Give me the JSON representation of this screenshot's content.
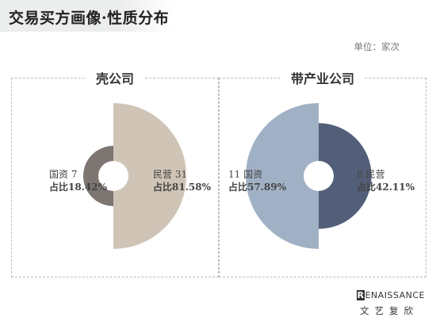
{
  "header": {
    "title": "交易买方画像·性质分布"
  },
  "unit": "单位：家次",
  "colors": {
    "shell_small": "#7d7572",
    "shell_large": "#cfc4b6",
    "industry_large": "#a1b1c5",
    "industry_small": "#535f78"
  },
  "chart_data": [
    {
      "type": "pie",
      "title": "壳公司",
      "slices": [
        {
          "name": "国资",
          "value": 7,
          "share_label": "占比18.42%",
          "color": "#7d7572"
        },
        {
          "name": "民营",
          "value": 31,
          "share_label": "占比81.58%",
          "color": "#cfc4b6"
        }
      ]
    },
    {
      "type": "pie",
      "title": "带产业公司",
      "slices": [
        {
          "name": "国资",
          "value": 11,
          "share_label": "占比57.89%",
          "color": "#a1b1c5"
        },
        {
          "name": "民营",
          "value": 8,
          "share_label": "占比42.11%",
          "color": "#535f78"
        }
      ]
    }
  ],
  "labels": {
    "shell_state": {
      "text": "国资  7",
      "share": "占比18.42%"
    },
    "shell_private": {
      "text": "民营  31",
      "share": "占比81.58%"
    },
    "industry_state": {
      "text": "11  国资",
      "share": "占比57.89%"
    },
    "industry_private": {
      "text": "8  民营",
      "share": "占比42.11%"
    }
  },
  "logo": {
    "en_first": "R",
    "en_rest": "ENAISSANCE",
    "cn": "文艺复欣"
  }
}
